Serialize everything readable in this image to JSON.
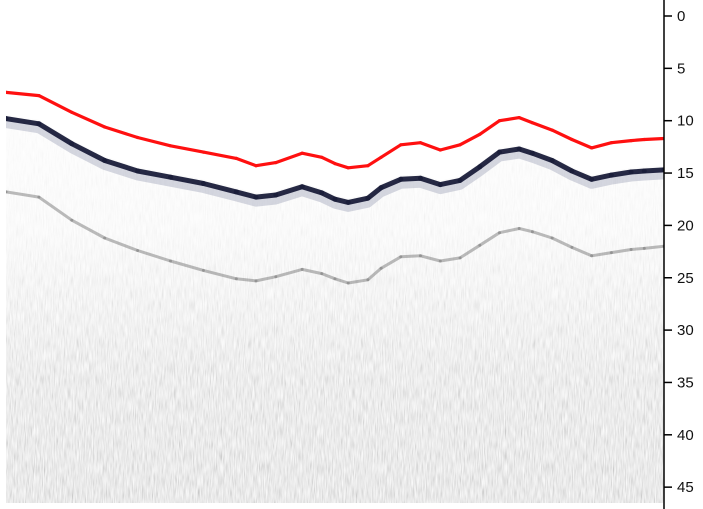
{
  "chart_data": {
    "type": "line",
    "title": "",
    "xlabel": "",
    "ylabel": "",
    "y_axis": {
      "position": "right",
      "direction": "downward",
      "ylim": [
        0,
        47
      ],
      "ticks": [
        0,
        5,
        10,
        15,
        20,
        25,
        30,
        35,
        40,
        45
      ],
      "tick_labels": [
        "0",
        "5",
        "10",
        "15",
        "20",
        "25",
        "30",
        "35",
        "40",
        "45"
      ]
    },
    "x_axis": {
      "xlim": [
        0,
        100
      ],
      "ticks_shown": false
    },
    "grid": false,
    "legend": "none",
    "background": "grayscale echogram",
    "series": [
      {
        "role": "detected-bottom-line",
        "color": "#ff1010",
        "x": [
          0,
          5,
          10,
          15,
          20,
          25,
          30,
          35,
          38,
          41,
          45,
          48,
          50,
          52,
          55,
          57,
          60,
          63,
          66,
          69,
          72,
          75,
          78,
          80,
          83,
          86,
          89,
          92,
          95,
          97,
          100
        ],
        "values": [
          7.3,
          7.6,
          9.2,
          10.6,
          11.6,
          12.4,
          13.0,
          13.6,
          14.3,
          14.0,
          13.1,
          13.5,
          14.1,
          14.5,
          14.3,
          13.5,
          12.3,
          12.1,
          12.8,
          12.3,
          11.3,
          10.0,
          9.7,
          10.2,
          10.9,
          11.8,
          12.6,
          12.1,
          11.9,
          11.8,
          11.7
        ]
      },
      {
        "role": "seabed-echo",
        "color": "#1a1d3a",
        "x": [
          0,
          5,
          10,
          15,
          20,
          25,
          30,
          35,
          38,
          41,
          45,
          48,
          50,
          52,
          55,
          57,
          60,
          63,
          66,
          69,
          72,
          75,
          78,
          80,
          83,
          86,
          89,
          92,
          95,
          97,
          100
        ],
        "values": [
          9.8,
          10.3,
          12.2,
          13.8,
          14.8,
          15.4,
          16.0,
          16.8,
          17.3,
          17.1,
          16.3,
          16.9,
          17.5,
          17.8,
          17.4,
          16.4,
          15.6,
          15.5,
          16.1,
          15.7,
          14.4,
          13.0,
          12.7,
          13.1,
          13.8,
          14.8,
          15.6,
          15.2,
          14.9,
          14.8,
          14.7
        ]
      },
      {
        "role": "subbottom-reflector",
        "color": "#6b6b6b",
        "x": [
          0,
          5,
          10,
          15,
          20,
          25,
          30,
          35,
          38,
          41,
          45,
          48,
          50,
          52,
          55,
          57,
          60,
          63,
          66,
          69,
          72,
          75,
          78,
          80,
          83,
          86,
          89,
          92,
          95,
          97,
          100
        ],
        "values": [
          16.8,
          17.3,
          19.5,
          21.2,
          22.4,
          23.4,
          24.3,
          25.1,
          25.3,
          24.9,
          24.2,
          24.6,
          25.1,
          25.5,
          25.2,
          24.1,
          23.0,
          22.9,
          23.4,
          23.1,
          21.9,
          20.7,
          20.3,
          20.6,
          21.2,
          22.1,
          22.9,
          22.6,
          22.3,
          22.2,
          22.0
        ]
      }
    ]
  }
}
